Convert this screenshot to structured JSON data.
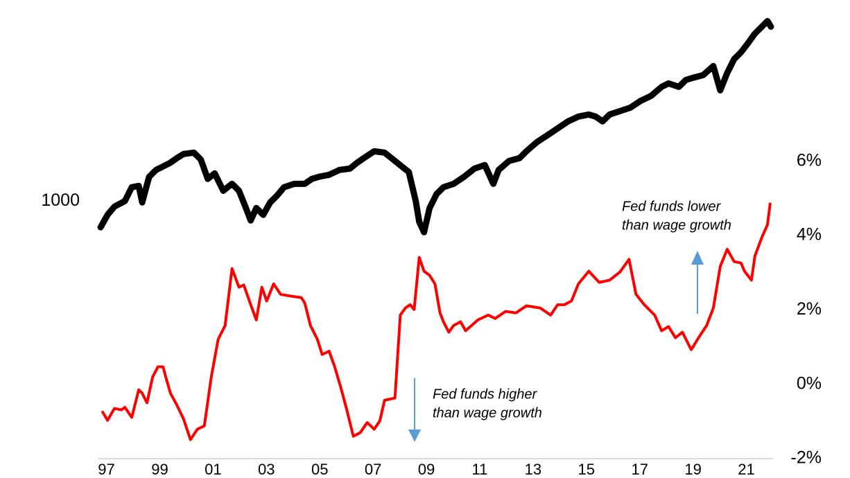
{
  "chart_data": {
    "type": "line",
    "xlim": [
      1996.7,
      2022.0
    ],
    "xticks": [
      {
        "value": 1997,
        "label": "97"
      },
      {
        "value": 1999,
        "label": "99"
      },
      {
        "value": 2001,
        "label": "01"
      },
      {
        "value": 2003,
        "label": "03"
      },
      {
        "value": 2005,
        "label": "05"
      },
      {
        "value": 2007,
        "label": "07"
      },
      {
        "value": 2009,
        "label": "09"
      },
      {
        "value": 2011,
        "label": "11"
      },
      {
        "value": 2013,
        "label": "13"
      },
      {
        "value": 2015,
        "label": "15"
      },
      {
        "value": 2017,
        "label": "17"
      },
      {
        "value": 2019,
        "label": "19"
      },
      {
        "value": 2021,
        "label": "21"
      }
    ],
    "ylim": [
      100,
      5400
    ],
    "yscale": "log",
    "yticks": [
      1000
    ],
    "y2lim": [
      -2,
      10
    ],
    "y2ticks": [
      {
        "value": -2,
        "label": "-2%"
      },
      {
        "value": 0,
        "label": "0%"
      },
      {
        "value": 2,
        "label": "2%"
      },
      {
        "value": 4,
        "label": "4%"
      },
      {
        "value": 6,
        "label": "6%"
      }
    ],
    "grid": false,
    "series": [
      {
        "color": "#000000",
        "axis": "y",
        "x": [
          1996.78,
          1997.04,
          1997.3,
          1997.69,
          1997.95,
          1998.21,
          1998.34,
          1998.6,
          1998.86,
          1999.12,
          1999.38,
          1999.64,
          1999.89,
          2000.28,
          2000.54,
          2000.8,
          2001.06,
          2001.38,
          2001.71,
          2001.97,
          2002.23,
          2002.41,
          2002.62,
          2002.88,
          2003.14,
          2003.4,
          2003.66,
          2004.05,
          2004.44,
          2004.7,
          2004.96,
          2005.35,
          2005.74,
          2006.13,
          2006.39,
          2006.65,
          2007.04,
          2007.43,
          2007.69,
          2008.08,
          2008.34,
          2008.6,
          2008.73,
          2008.91,
          2009.12,
          2009.38,
          2009.64,
          2010.02,
          2010.41,
          2010.8,
          2011.19,
          2011.51,
          2011.71,
          2012.1,
          2012.49,
          2012.75,
          2013.14,
          2013.53,
          2013.92,
          2014.31,
          2014.7,
          2015.09,
          2015.35,
          2015.61,
          2015.87,
          2016.26,
          2016.65,
          2017.04,
          2017.43,
          2017.82,
          2018.08,
          2018.47,
          2018.73,
          2018.99,
          2019.38,
          2019.76,
          2020.02,
          2020.28,
          2020.54,
          2020.8,
          2021.06,
          2021.32,
          2021.58,
          2021.79,
          2021.92
        ],
        "values": [
          791,
          884,
          952,
          1000,
          1132,
          1146,
          988,
          1242,
          1321,
          1362,
          1406,
          1468,
          1523,
          1542,
          1449,
          1219,
          1281,
          1097,
          1167,
          1097,
          940,
          841,
          940,
          884,
          988,
          1051,
          1132,
          1167,
          1167,
          1219,
          1242,
          1265,
          1321,
          1337,
          1406,
          1468,
          1561,
          1542,
          1468,
          1362,
          1297,
          1000,
          831,
          757,
          940,
          1064,
          1132,
          1167,
          1242,
          1337,
          1380,
          1167,
          1321,
          1432,
          1468,
          1561,
          1693,
          1799,
          1915,
          2039,
          2128,
          2168,
          2128,
          2039,
          2168,
          2236,
          2306,
          2453,
          2563,
          2777,
          2864,
          2777,
          2954,
          3010,
          3085,
          3343,
          2692,
          3142,
          3556,
          3785,
          4102,
          4473,
          4755,
          5000,
          4755
        ]
      },
      {
        "color": "#ff0000",
        "axis": "y2",
        "x": [
          1996.86,
          1997.04,
          1997.3,
          1997.56,
          1997.69,
          1997.95,
          1998.21,
          1998.34,
          1998.52,
          1998.73,
          1998.93,
          1999.12,
          1999.25,
          1999.4,
          1999.64,
          1999.89,
          2000.15,
          2000.41,
          2000.67,
          2000.8,
          2000.93,
          2001.19,
          2001.45,
          2001.71,
          2001.97,
          2002.15,
          2002.41,
          2002.62,
          2002.83,
          2003.01,
          2003.27,
          2003.53,
          2003.92,
          2004.31,
          2004.44,
          2004.65,
          2004.91,
          2005.09,
          2005.35,
          2005.56,
          2005.79,
          2006.0,
          2006.26,
          2006.52,
          2006.78,
          2007.04,
          2007.25,
          2007.43,
          2007.82,
          2008.02,
          2008.21,
          2008.39,
          2008.54,
          2008.73,
          2008.91,
          2009.12,
          2009.32,
          2009.51,
          2009.64,
          2009.84,
          2010.02,
          2010.28,
          2010.47,
          2010.93,
          2011.32,
          2011.58,
          2011.97,
          2012.36,
          2012.75,
          2013.27,
          2013.66,
          2013.92,
          2014.18,
          2014.44,
          2014.7,
          2015.09,
          2015.48,
          2015.87,
          2016.26,
          2016.6,
          2016.86,
          2017.17,
          2017.56,
          2017.82,
          2018.08,
          2018.34,
          2018.6,
          2018.93,
          2019.25,
          2019.51,
          2019.76,
          2020.02,
          2020.28,
          2020.54,
          2020.8,
          2020.93,
          2021.19,
          2021.32,
          2021.58,
          2021.79,
          2021.89
        ],
        "values": [
          -0.75,
          -0.97,
          -0.65,
          -0.69,
          -0.62,
          -0.89,
          -0.15,
          -0.24,
          -0.5,
          0.19,
          0.47,
          0.47,
          0.13,
          -0.24,
          -0.56,
          -0.93,
          -1.49,
          -1.21,
          -1.12,
          -0.47,
          0.19,
          1.21,
          1.58,
          3.11,
          2.61,
          2.67,
          2.14,
          1.73,
          2.61,
          2.24,
          2.7,
          2.42,
          2.37,
          2.33,
          2.18,
          1.58,
          1.21,
          0.8,
          0.89,
          0.47,
          -0.09,
          -0.65,
          -1.4,
          -1.3,
          -1.03,
          -1.21,
          -0.99,
          -0.43,
          -0.37,
          1.86,
          2.05,
          2.14,
          2.01,
          3.41,
          3.04,
          2.93,
          2.7,
          1.92,
          1.68,
          1.4,
          1.58,
          1.68,
          1.44,
          1.73,
          1.86,
          1.77,
          1.96,
          1.92,
          2.11,
          2.05,
          1.86,
          2.14,
          2.14,
          2.24,
          2.7,
          3.04,
          2.74,
          2.8,
          3.02,
          3.36,
          2.42,
          2.14,
          1.86,
          1.44,
          1.55,
          1.25,
          1.4,
          0.93,
          1.3,
          1.58,
          2.05,
          3.17,
          3.63,
          3.3,
          3.26,
          3.04,
          2.8,
          3.45,
          3.95,
          4.29,
          4.85
        ]
      }
    ],
    "annotations": [
      {
        "lines": [
          "Fed funds lower",
          "than wage growth"
        ]
      },
      {
        "lines": [
          "Fed funds higher",
          "than wage growth"
        ]
      }
    ]
  }
}
